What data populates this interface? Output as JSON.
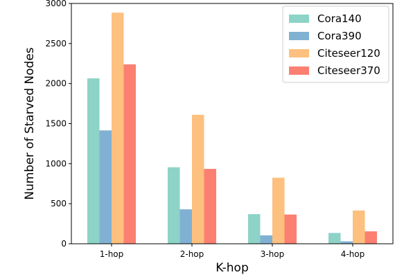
{
  "chart_data": {
    "type": "bar",
    "title": "",
    "xlabel": "K-hop",
    "ylabel": "Number of Starved Nodes",
    "categories": [
      "1-hop",
      "2-hop",
      "3-hop",
      "4-hop"
    ],
    "ylim": [
      0,
      3000
    ],
    "yticks": [
      "0",
      "500",
      "1000",
      "1500",
      "2000",
      "2500",
      "3000"
    ],
    "grid": false,
    "legend_position": "top-right",
    "series": [
      {
        "name": "Cora140",
        "color": "#8dd3c7",
        "values": [
          2065,
          955,
          370,
          135
        ]
      },
      {
        "name": "Cora390",
        "color": "#80b1d3",
        "values": [
          1415,
          430,
          105,
          30
        ]
      },
      {
        "name": "Citeseer120",
        "color": "#fdc07f",
        "values": [
          2885,
          1610,
          825,
          415
        ]
      },
      {
        "name": "Citeseer370",
        "color": "#fb8072",
        "values": [
          2240,
          935,
          365,
          155
        ]
      }
    ]
  }
}
